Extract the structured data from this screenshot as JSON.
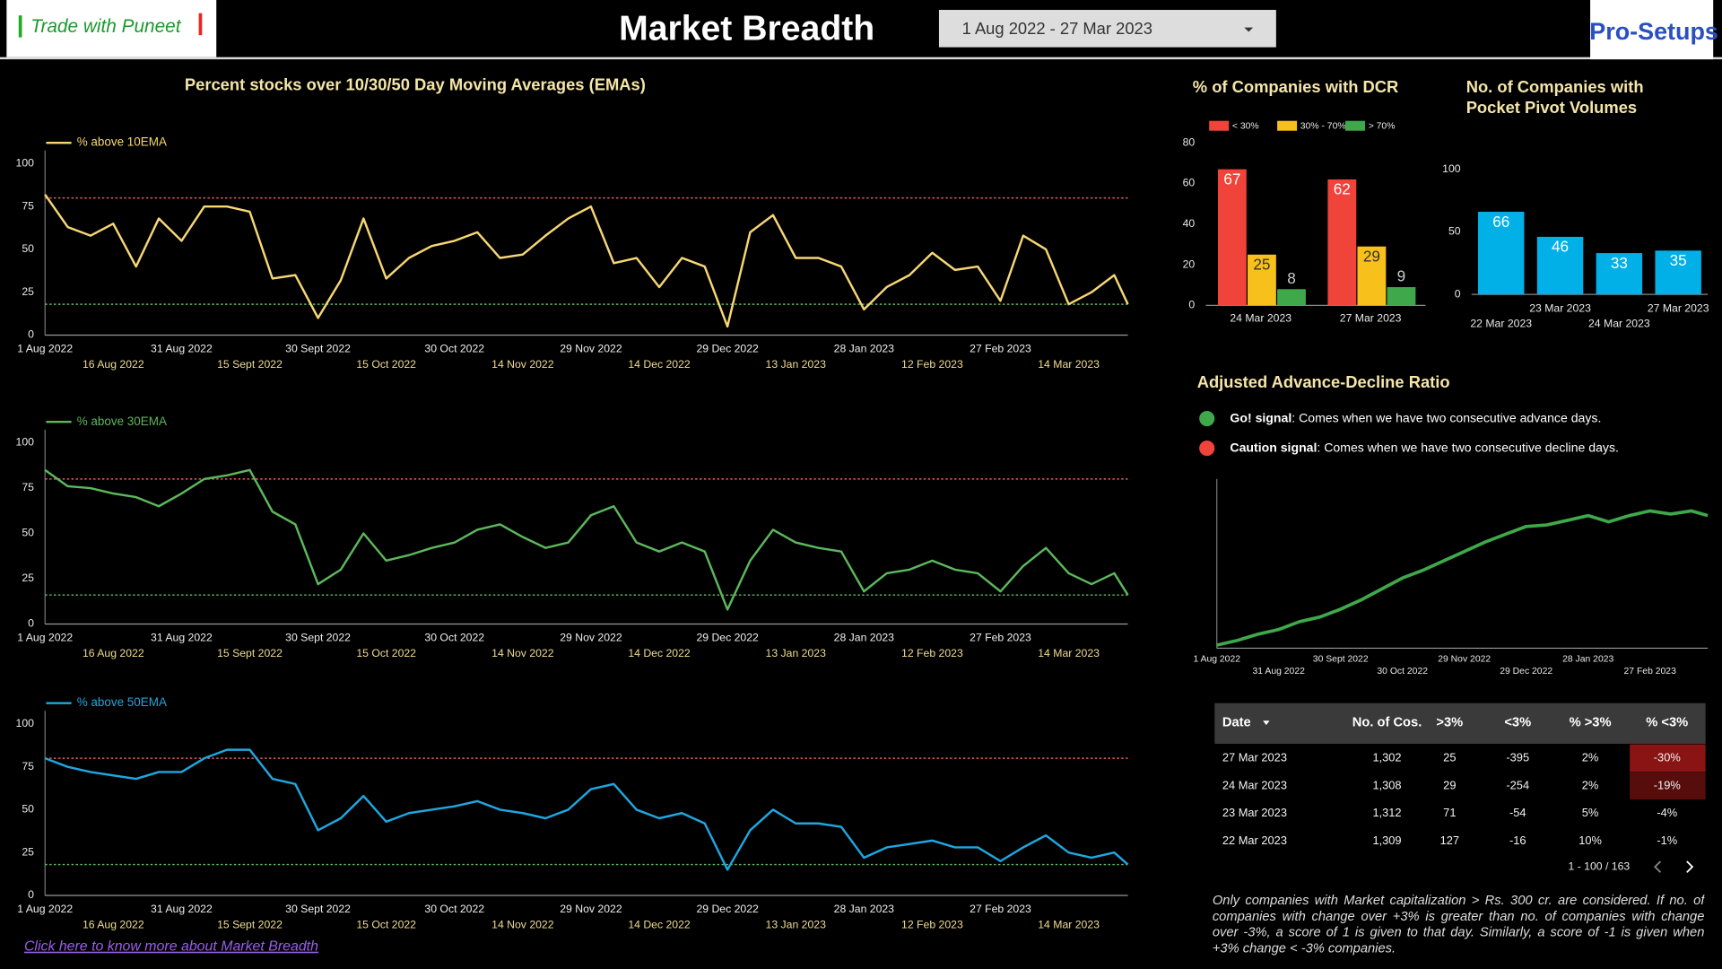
{
  "header": {
    "brand": "Trade with Puneet",
    "title": "Market Breadth",
    "date_range": "1 Aug 2022 - 27 Mar 2023",
    "right_logo": "Pro-Setups"
  },
  "section_title": "Percent stocks over 10/30/50 Day Moving Averages (EMAs)",
  "chart_data": [
    {
      "type": "line",
      "xlim": [
        "2022-08-01",
        "2023-03-27"
      ],
      "ylim": [
        0,
        100
      ],
      "yticks": [
        0,
        25,
        50,
        75,
        100
      ],
      "xticks": [
        {
          "value": "2022-08-01",
          "label": "1 Aug 2022"
        },
        {
          "value": "2022-08-16",
          "label": "16 Aug 2022"
        },
        {
          "value": "2022-08-31",
          "label": "31 Aug 2022"
        },
        {
          "value": "2022-09-15",
          "label": "15 Sept 2022"
        },
        {
          "value": "2022-09-30",
          "label": "30 Sept 2022"
        },
        {
          "value": "2022-10-15",
          "label": "15 Oct 2022"
        },
        {
          "value": "2022-10-30",
          "label": "30 Oct 2022"
        },
        {
          "value": "2022-11-14",
          "label": "14 Nov 2022"
        },
        {
          "value": "2022-11-29",
          "label": "29 Nov 2022"
        },
        {
          "value": "2022-12-14",
          "label": "14 Dec 2022"
        },
        {
          "value": "2022-12-29",
          "label": "29 Dec 2022"
        },
        {
          "value": "2023-01-13",
          "label": "13 Jan 2023"
        },
        {
          "value": "2023-01-28",
          "label": "28 Jan 2023"
        },
        {
          "value": "2023-02-12",
          "label": "12 Feb 2023"
        },
        {
          "value": "2023-02-27",
          "label": "27 Feb 2023"
        },
        {
          "value": "2023-03-14",
          "label": "14 Mar 2023"
        }
      ],
      "reference_lines": [
        {
          "value": 80,
          "color": "#e0605a"
        },
        {
          "value": 18,
          "color": "#5fbf5f"
        }
      ],
      "x": [
        "2022-08-01",
        "2022-08-06",
        "2022-08-11",
        "2022-08-16",
        "2022-08-21",
        "2022-08-26",
        "2022-08-31",
        "2022-09-05",
        "2022-09-10",
        "2022-09-15",
        "2022-09-20",
        "2022-09-25",
        "2022-09-30",
        "2022-10-05",
        "2022-10-10",
        "2022-10-15",
        "2022-10-20",
        "2022-10-25",
        "2022-10-30",
        "2022-11-04",
        "2022-11-09",
        "2022-11-14",
        "2022-11-19",
        "2022-11-24",
        "2022-11-29",
        "2022-12-04",
        "2022-12-09",
        "2022-12-14",
        "2022-12-19",
        "2022-12-24",
        "2022-12-29",
        "2023-01-03",
        "2023-01-08",
        "2023-01-13",
        "2023-01-18",
        "2023-01-23",
        "2023-01-28",
        "2023-02-02",
        "2023-02-07",
        "2023-02-12",
        "2023-02-17",
        "2023-02-22",
        "2023-02-27",
        "2023-03-04",
        "2023-03-09",
        "2023-03-14",
        "2023-03-19",
        "2023-03-24",
        "2023-03-27"
      ],
      "series": [
        {
          "name": "% above 10EMA",
          "color": "#f7d774",
          "values": [
            82,
            63,
            58,
            65,
            40,
            68,
            55,
            75,
            75,
            72,
            33,
            35,
            10,
            32,
            68,
            33,
            45,
            52,
            55,
            60,
            45,
            47,
            58,
            68,
            75,
            42,
            45,
            28,
            45,
            40,
            5,
            60,
            70,
            45,
            45,
            40,
            15,
            28,
            35,
            48,
            38,
            40,
            20,
            58,
            50,
            18,
            25,
            35,
            18
          ]
        }
      ]
    },
    {
      "type": "line",
      "xlim": [
        "2022-08-01",
        "2023-03-27"
      ],
      "ylim": [
        0,
        100
      ],
      "yticks": [
        0,
        25,
        50,
        75,
        100
      ],
      "xticks": [
        {
          "value": "2022-08-01",
          "label": "1 Aug 2022"
        },
        {
          "value": "2022-08-16",
          "label": "16 Aug 2022"
        },
        {
          "value": "2022-08-31",
          "label": "31 Aug 2022"
        },
        {
          "value": "2022-09-15",
          "label": "15 Sept 2022"
        },
        {
          "value": "2022-09-30",
          "label": "30 Sept 2022"
        },
        {
          "value": "2022-10-15",
          "label": "15 Oct 2022"
        },
        {
          "value": "2022-10-30",
          "label": "30 Oct 2022"
        },
        {
          "value": "2022-11-14",
          "label": "14 Nov 2022"
        },
        {
          "value": "2022-11-29",
          "label": "29 Nov 2022"
        },
        {
          "value": "2022-12-14",
          "label": "14 Dec 2022"
        },
        {
          "value": "2022-12-29",
          "label": "29 Dec 2022"
        },
        {
          "value": "2023-01-13",
          "label": "13 Jan 2023"
        },
        {
          "value": "2023-01-28",
          "label": "28 Jan 2023"
        },
        {
          "value": "2023-02-12",
          "label": "12 Feb 2023"
        },
        {
          "value": "2023-02-27",
          "label": "27 Feb 2023"
        },
        {
          "value": "2023-03-14",
          "label": "14 Mar 2023"
        }
      ],
      "reference_lines": [
        {
          "value": 80,
          "color": "#e0605a"
        },
        {
          "value": 16,
          "color": "#5fbf5f"
        }
      ],
      "x": [
        "2022-08-01",
        "2022-08-06",
        "2022-08-11",
        "2022-08-16",
        "2022-08-21",
        "2022-08-26",
        "2022-08-31",
        "2022-09-05",
        "2022-09-10",
        "2022-09-15",
        "2022-09-20",
        "2022-09-25",
        "2022-09-30",
        "2022-10-05",
        "2022-10-10",
        "2022-10-15",
        "2022-10-20",
        "2022-10-25",
        "2022-10-30",
        "2022-11-04",
        "2022-11-09",
        "2022-11-14",
        "2022-11-19",
        "2022-11-24",
        "2022-11-29",
        "2022-12-04",
        "2022-12-09",
        "2022-12-14",
        "2022-12-19",
        "2022-12-24",
        "2022-12-29",
        "2023-01-03",
        "2023-01-08",
        "2023-01-13",
        "2023-01-18",
        "2023-01-23",
        "2023-01-28",
        "2023-02-02",
        "2023-02-07",
        "2023-02-12",
        "2023-02-17",
        "2023-02-22",
        "2023-02-27",
        "2023-03-04",
        "2023-03-09",
        "2023-03-14",
        "2023-03-19",
        "2023-03-24",
        "2023-03-27"
      ],
      "series": [
        {
          "name": "% above 30EMA",
          "color": "#5cb85c",
          "values": [
            85,
            76,
            75,
            72,
            70,
            65,
            72,
            80,
            82,
            85,
            62,
            55,
            22,
            30,
            50,
            35,
            38,
            42,
            45,
            52,
            55,
            48,
            42,
            45,
            60,
            65,
            45,
            40,
            45,
            40,
            8,
            35,
            52,
            45,
            42,
            40,
            18,
            28,
            30,
            35,
            30,
            28,
            18,
            32,
            42,
            28,
            22,
            28,
            16
          ]
        }
      ]
    },
    {
      "type": "line",
      "xlim": [
        "2022-08-01",
        "2023-03-27"
      ],
      "ylim": [
        0,
        100
      ],
      "yticks": [
        0,
        25,
        50,
        75,
        100
      ],
      "xticks": [
        {
          "value": "2022-08-01",
          "label": "1 Aug 2022"
        },
        {
          "value": "2022-08-16",
          "label": "16 Aug 2022"
        },
        {
          "value": "2022-08-31",
          "label": "31 Aug 2022"
        },
        {
          "value": "2022-09-15",
          "label": "15 Sept 2022"
        },
        {
          "value": "2022-09-30",
          "label": "30 Sept 2022"
        },
        {
          "value": "2022-10-15",
          "label": "15 Oct 2022"
        },
        {
          "value": "2022-10-30",
          "label": "30 Oct 2022"
        },
        {
          "value": "2022-11-14",
          "label": "14 Nov 2022"
        },
        {
          "value": "2022-11-29",
          "label": "29 Nov 2022"
        },
        {
          "value": "2022-12-14",
          "label": "14 Dec 2022"
        },
        {
          "value": "2022-12-29",
          "label": "29 Dec 2022"
        },
        {
          "value": "2023-01-13",
          "label": "13 Jan 2023"
        },
        {
          "value": "2023-01-28",
          "label": "28 Jan 2023"
        },
        {
          "value": "2023-02-12",
          "label": "12 Feb 2023"
        },
        {
          "value": "2023-02-27",
          "label": "27 Feb 2023"
        },
        {
          "value": "2023-03-14",
          "label": "14 Mar 2023"
        }
      ],
      "reference_lines": [
        {
          "value": 80,
          "color": "#e0605a"
        },
        {
          "value": 18,
          "color": "#5fbf5f"
        }
      ],
      "x": [
        "2022-08-01",
        "2022-08-06",
        "2022-08-11",
        "2022-08-16",
        "2022-08-21",
        "2022-08-26",
        "2022-08-31",
        "2022-09-05",
        "2022-09-10",
        "2022-09-15",
        "2022-09-20",
        "2022-09-25",
        "2022-09-30",
        "2022-10-05",
        "2022-10-10",
        "2022-10-15",
        "2022-10-20",
        "2022-10-25",
        "2022-10-30",
        "2022-11-04",
        "2022-11-09",
        "2022-11-14",
        "2022-11-19",
        "2022-11-24",
        "2022-11-29",
        "2022-12-04",
        "2022-12-09",
        "2022-12-14",
        "2022-12-19",
        "2022-12-24",
        "2022-12-29",
        "2023-01-03",
        "2023-01-08",
        "2023-01-13",
        "2023-01-18",
        "2023-01-23",
        "2023-01-28",
        "2023-02-02",
        "2023-02-07",
        "2023-02-12",
        "2023-02-17",
        "2023-02-22",
        "2023-02-27",
        "2023-03-04",
        "2023-03-09",
        "2023-03-14",
        "2023-03-19",
        "2023-03-24",
        "2023-03-27"
      ],
      "series": [
        {
          "name": "% above 50EMA",
          "color": "#1ea7e0",
          "values": [
            80,
            75,
            72,
            70,
            68,
            72,
            72,
            80,
            85,
            85,
            68,
            65,
            38,
            45,
            58,
            43,
            48,
            50,
            52,
            55,
            50,
            48,
            45,
            50,
            62,
            65,
            50,
            45,
            48,
            42,
            15,
            38,
            50,
            42,
            42,
            40,
            22,
            28,
            30,
            32,
            28,
            28,
            20,
            28,
            35,
            25,
            22,
            25,
            18
          ]
        }
      ]
    },
    {
      "type": "bar",
      "title": "% of Companies with DCR",
      "categories": [
        "24 Mar 2023",
        "27 Mar 2023"
      ],
      "ylim": [
        0,
        80
      ],
      "yticks": [
        0,
        20,
        40,
        60,
        80
      ],
      "series": [
        {
          "name": "< 30%",
          "color": "#f0433a",
          "values": [
            67,
            62
          ]
        },
        {
          "name": "30% - 70%",
          "color": "#f8c01a",
          "values": [
            25,
            29
          ]
        },
        {
          "name": "> 70%",
          "color": "#3fa84a",
          "values": [
            8,
            9
          ]
        }
      ]
    },
    {
      "type": "bar",
      "title_lines": [
        "No. of Companies with",
        "Pocket Pivot Volumes"
      ],
      "categories": [
        "22 Mar 2023",
        "23 Mar 2023",
        "24 Mar 2023",
        "27 Mar 2023"
      ],
      "ylim": [
        0,
        100
      ],
      "yticks": [
        0,
        50,
        100
      ],
      "series": [
        {
          "color": "#00b0e6",
          "values": [
            66,
            46,
            33,
            35
          ]
        }
      ]
    },
    {
      "type": "line",
      "title": "Adjusted Advance-Decline Ratio",
      "xlim": [
        "2022-08-01",
        "2023-03-27"
      ],
      "ylim": [
        0,
        100
      ],
      "xticks": [
        {
          "value": "2022-08-01",
          "label": "1 Aug 2022"
        },
        {
          "value": "2022-08-31",
          "label": "31 Aug 2022"
        },
        {
          "value": "2022-09-30",
          "label": "30 Sept 2022"
        },
        {
          "value": "2022-10-30",
          "label": "30 Oct 2022"
        },
        {
          "value": "2022-11-29",
          "label": "29 Nov 2022"
        },
        {
          "value": "2022-12-29",
          "label": "29 Dec 2022"
        },
        {
          "value": "2023-01-28",
          "label": "28 Jan 2023"
        },
        {
          "value": "2023-02-27",
          "label": "27 Feb 2023"
        }
      ],
      "legend": [
        {
          "label": "Go! signal",
          "text": ": Comes when we have two consecutive advance days.",
          "color": "#3fa84a"
        },
        {
          "label": "Caution signal",
          "text": ": Comes when we have two consecutive decline days.",
          "color": "#f0433a"
        }
      ],
      "x": [
        "2022-08-01",
        "2022-08-11",
        "2022-08-21",
        "2022-08-31",
        "2022-09-10",
        "2022-09-20",
        "2022-09-30",
        "2022-10-10",
        "2022-10-20",
        "2022-10-30",
        "2022-11-09",
        "2022-11-19",
        "2022-11-29",
        "2022-12-09",
        "2022-12-19",
        "2022-12-29",
        "2023-01-08",
        "2023-01-18",
        "2023-01-28",
        "2023-02-07",
        "2023-02-17",
        "2023-02-27",
        "2023-03-09",
        "2023-03-19",
        "2023-03-27"
      ],
      "series": [
        {
          "color": "#3fa84a",
          "values": [
            2,
            5,
            9,
            12,
            17,
            20,
            25,
            31,
            38,
            45,
            50,
            56,
            62,
            68,
            73,
            78,
            79,
            82,
            85,
            81,
            85,
            88,
            86,
            88,
            85
          ]
        }
      ]
    }
  ],
  "table": {
    "columns": [
      "Date",
      "No. of Cos.",
      ">3%",
      "<3%",
      "% >3%",
      "% <3%"
    ],
    "rows": [
      [
        "27 Mar 2023",
        "1,302",
        "25",
        "-395",
        "2%",
        "-30%"
      ],
      [
        "24 Mar 2023",
        "1,308",
        "29",
        "-254",
        "2%",
        "-19%"
      ],
      [
        "23 Mar 2023",
        "1,312",
        "71",
        "-54",
        "5%",
        "-4%"
      ],
      [
        "22 Mar 2023",
        "1,309",
        "127",
        "-16",
        "10%",
        "-1%"
      ]
    ],
    "pagination": "1 - 100 / 163"
  },
  "footnote": "Only companies with Market capitalization > Rs. 300 cr. are considered. If no. of companies with change over +3% is greater than no. of companies with change over -3%, a score of 1 is given to that day. Similarly, a score of -1 is given when +3% change < -3% companies.",
  "link": "Click here to know more about Market Breadth"
}
